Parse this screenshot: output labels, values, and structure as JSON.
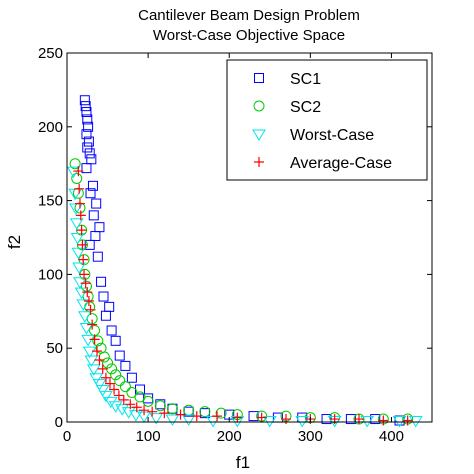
{
  "chart_data": {
    "type": "scatter",
    "title": [
      "Cantilever Beam Design Problem",
      "Worst-Case Objective Space"
    ],
    "xlabel": "f1",
    "ylabel": "f2",
    "xlim": [
      0,
      450
    ],
    "ylim": [
      0,
      250
    ],
    "xticks": [
      0,
      100,
      200,
      300,
      400
    ],
    "yticks": [
      0,
      50,
      100,
      150,
      200,
      250
    ],
    "grid": false,
    "legend_position": "top-right",
    "series": [
      {
        "name": "SC1",
        "marker": "square",
        "color": "#0000ff",
        "points": [
          [
            22,
            218
          ],
          [
            23,
            214
          ],
          [
            24,
            210
          ],
          [
            25,
            205
          ],
          [
            26,
            200
          ],
          [
            24,
            195
          ],
          [
            27,
            190
          ],
          [
            25,
            186
          ],
          [
            28,
            182
          ],
          [
            30,
            178
          ],
          [
            24,
            172
          ],
          [
            32,
            160
          ],
          [
            29,
            155
          ],
          [
            36,
            148
          ],
          [
            33,
            140
          ],
          [
            40,
            132
          ],
          [
            35,
            126
          ],
          [
            28,
            120
          ],
          [
            38,
            112
          ],
          [
            42,
            95
          ],
          [
            45,
            85
          ],
          [
            48,
            72
          ],
          [
            52,
            78
          ],
          [
            55,
            62
          ],
          [
            60,
            55
          ],
          [
            65,
            45
          ],
          [
            72,
            38
          ],
          [
            80,
            30
          ],
          [
            90,
            22
          ],
          [
            100,
            16
          ],
          [
            115,
            12
          ],
          [
            130,
            9
          ],
          [
            150,
            7
          ],
          [
            170,
            6
          ],
          [
            200,
            5
          ],
          [
            230,
            4
          ],
          [
            260,
            3
          ],
          [
            290,
            3
          ],
          [
            320,
            2
          ],
          [
            350,
            2
          ],
          [
            380,
            2
          ],
          [
            410,
            1
          ]
        ]
      },
      {
        "name": "SC2",
        "marker": "circle",
        "color": "#00cc00",
        "points": [
          [
            10,
            175
          ],
          [
            12,
            165
          ],
          [
            14,
            155
          ],
          [
            16,
            145
          ],
          [
            18,
            130
          ],
          [
            19,
            120
          ],
          [
            21,
            110
          ],
          [
            22,
            100
          ],
          [
            24,
            92
          ],
          [
            26,
            85
          ],
          [
            28,
            78
          ],
          [
            31,
            70
          ],
          [
            34,
            62
          ],
          [
            38,
            55
          ],
          [
            42,
            50
          ],
          [
            46,
            44
          ],
          [
            50,
            40
          ],
          [
            55,
            36
          ],
          [
            60,
            32
          ],
          [
            65,
            28
          ],
          [
            72,
            24
          ],
          [
            80,
            20
          ],
          [
            90,
            17
          ],
          [
            100,
            14
          ],
          [
            115,
            11
          ],
          [
            130,
            9
          ],
          [
            150,
            8
          ],
          [
            170,
            7
          ],
          [
            190,
            6
          ],
          [
            210,
            5
          ],
          [
            240,
            4
          ],
          [
            270,
            4
          ],
          [
            300,
            3
          ],
          [
            330,
            3
          ],
          [
            360,
            2
          ],
          [
            390,
            2
          ],
          [
            420,
            2
          ]
        ]
      },
      {
        "name": "Worst-Case",
        "marker": "triangle-down",
        "color": "#00e5ee",
        "points": [
          [
            8,
            170
          ],
          [
            10,
            155
          ],
          [
            11,
            145
          ],
          [
            12,
            135
          ],
          [
            13,
            125
          ],
          [
            14,
            115
          ],
          [
            15,
            105
          ],
          [
            16,
            95
          ],
          [
            18,
            88
          ],
          [
            20,
            80
          ],
          [
            22,
            72
          ],
          [
            24,
            64
          ],
          [
            26,
            56
          ],
          [
            28,
            48
          ],
          [
            30,
            42
          ],
          [
            33,
            36
          ],
          [
            36,
            30
          ],
          [
            40,
            26
          ],
          [
            44,
            22
          ],
          [
            48,
            18
          ],
          [
            54,
            14
          ],
          [
            60,
            11
          ],
          [
            68,
            9
          ],
          [
            76,
            7
          ],
          [
            85,
            5
          ],
          [
            95,
            4
          ],
          [
            110,
            3
          ],
          [
            130,
            2
          ],
          [
            150,
            2
          ],
          [
            180,
            1
          ],
          [
            210,
            1
          ],
          [
            250,
            1
          ],
          [
            290,
            1
          ],
          [
            330,
            1
          ],
          [
            370,
            1
          ],
          [
            410,
            1
          ],
          [
            430,
            1
          ]
        ]
      },
      {
        "name": "Average-Case",
        "marker": "plus",
        "color": "#ff0000",
        "points": [
          [
            14,
            170
          ],
          [
            15,
            158
          ],
          [
            16,
            148
          ],
          [
            17,
            140
          ],
          [
            18,
            130
          ],
          [
            19,
            120
          ],
          [
            20,
            110
          ],
          [
            21,
            100
          ],
          [
            23,
            94
          ],
          [
            25,
            88
          ],
          [
            27,
            82
          ],
          [
            29,
            76
          ],
          [
            31,
            66
          ],
          [
            34,
            56
          ],
          [
            37,
            48
          ],
          [
            40,
            42
          ],
          [
            44,
            36
          ],
          [
            48,
            30
          ],
          [
            53,
            26
          ],
          [
            58,
            22
          ],
          [
            64,
            18
          ],
          [
            70,
            15
          ],
          [
            78,
            12
          ],
          [
            86,
            10
          ],
          [
            95,
            8
          ],
          [
            105,
            7
          ],
          [
            120,
            6
          ],
          [
            140,
            5
          ],
          [
            160,
            4
          ],
          [
            185,
            4
          ],
          [
            210,
            3
          ],
          [
            240,
            3
          ],
          [
            270,
            2
          ],
          [
            300,
            2
          ],
          [
            330,
            2
          ],
          [
            360,
            2
          ],
          [
            390,
            1
          ],
          [
            420,
            1
          ]
        ]
      }
    ]
  }
}
